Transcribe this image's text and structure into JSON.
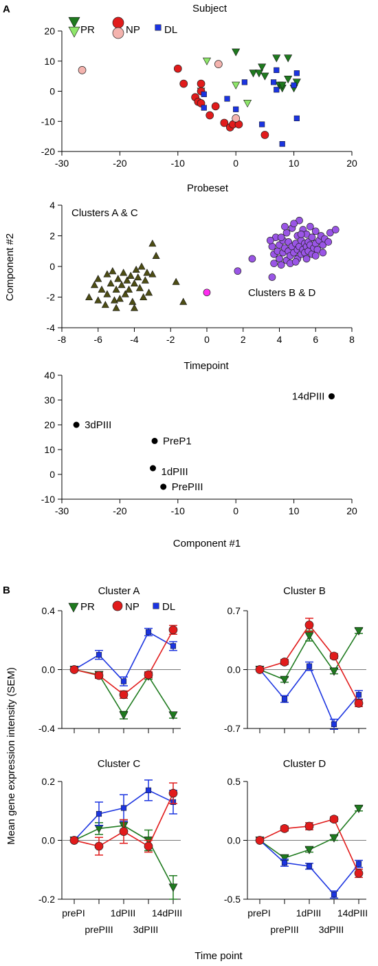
{
  "figure": {
    "panel_a_letter": "A",
    "panel_b_letter": "B"
  },
  "colors": {
    "pr_dark": "#1e7a1e",
    "pr_light": "#8ee66a",
    "np_dark": "#e11b1b",
    "np_light": "#f4b3ae",
    "dl": "#1b34e0",
    "dark_olive": "#4d4d14",
    "purple": "#9a55e6",
    "magenta": "#ff2bf0"
  },
  "chart_data": [
    {
      "type": "scatter",
      "title": "Subject",
      "xlabel": "Probeset",
      "xlim": [
        -30,
        20
      ],
      "ylim": [
        -20,
        20
      ],
      "xticks": [
        -30,
        -20,
        -10,
        0,
        10,
        20
      ],
      "yticks": [
        -20,
        -10,
        0,
        10,
        20
      ],
      "legend_position": "top-left",
      "legend_labels": [
        "PR",
        "NP",
        "DL"
      ],
      "series": [
        {
          "name": "PR",
          "key": "pr_dark",
          "marker": "triangle-down",
          "points": [
            [
              0,
              13
            ],
            [
              3,
              6
            ],
            [
              4,
              6
            ],
            [
              4.5,
              8
            ],
            [
              5,
              5
            ],
            [
              7,
              11
            ],
            [
              7.5,
              2
            ],
            [
              8,
              1
            ],
            [
              9,
              11
            ],
            [
              9,
              4
            ],
            [
              10,
              1
            ],
            [
              10.5,
              3
            ],
            [
              8,
              2
            ]
          ]
        },
        {
          "name": "PR",
          "key": "pr_light",
          "marker": "triangle-down",
          "points": [
            [
              -5,
              10
            ],
            [
              0,
              2
            ],
            [
              -6,
              0
            ],
            [
              2,
              -4
            ]
          ]
        },
        {
          "name": "NP",
          "key": "np_dark",
          "marker": "circle",
          "points": [
            [
              -10,
              7.5
            ],
            [
              -9,
              2.5
            ],
            [
              -6,
              2.5
            ],
            [
              -6,
              0
            ],
            [
              -7,
              -2
            ],
            [
              -6.5,
              -3.5
            ],
            [
              -6,
              -4
            ],
            [
              -3.5,
              -5
            ],
            [
              -4.5,
              -8
            ],
            [
              -2,
              -10.5
            ],
            [
              -1,
              -12
            ],
            [
              -0.5,
              -11
            ],
            [
              0.5,
              -11
            ],
            [
              5,
              -14.5
            ]
          ]
        },
        {
          "name": "NP",
          "key": "np_light",
          "marker": "circle",
          "points": [
            [
              -26.5,
              7
            ],
            [
              -3,
              9
            ],
            [
              0,
              -9
            ]
          ]
        },
        {
          "name": "DL",
          "key": "dl",
          "marker": "square",
          "points": [
            [
              -5.5,
              -1
            ],
            [
              -5.5,
              -5.5
            ],
            [
              -1.5,
              -2.5
            ],
            [
              0,
              -6
            ],
            [
              1.5,
              3
            ],
            [
              4.5,
              -11
            ],
            [
              6.5,
              3
            ],
            [
              7,
              7
            ],
            [
              7,
              0.5
            ],
            [
              8,
              -17.5
            ],
            [
              10,
              2
            ],
            [
              10.5,
              6
            ],
            [
              10.5,
              -9
            ]
          ]
        }
      ]
    },
    {
      "type": "scatter",
      "xlabel": "Timepoint",
      "ylabel": "Component #2",
      "xlim": [
        -8,
        8
      ],
      "ylim": [
        -4,
        4
      ],
      "xticks": [
        -8,
        -6,
        -4,
        -2,
        0,
        2,
        4,
        6,
        8
      ],
      "yticks": [
        -4,
        -2,
        0,
        2,
        4
      ],
      "annotations": [
        "Clusters A & C",
        "Clusters B & D"
      ],
      "series": [
        {
          "key": "dark_olive",
          "marker": "triangle-up",
          "points": [
            [
              -6.5,
              -2
            ],
            [
              -6.2,
              -1.2
            ],
            [
              -6,
              -0.8
            ],
            [
              -6,
              -2.2
            ],
            [
              -5.8,
              -1.5
            ],
            [
              -5.6,
              -2.5
            ],
            [
              -5.5,
              -0.5
            ],
            [
              -5.5,
              -1.8
            ],
            [
              -5.3,
              -1.1
            ],
            [
              -5.2,
              -0.3
            ],
            [
              -5.1,
              -2.2
            ],
            [
              -5,
              -1.5
            ],
            [
              -4.9,
              -0.8
            ],
            [
              -4.8,
              -2.1
            ],
            [
              -4.7,
              -1.2
            ],
            [
              -4.6,
              -0.4
            ],
            [
              -4.5,
              -1.8
            ],
            [
              -4.4,
              -0.9
            ],
            [
              -4.3,
              -1.5
            ],
            [
              -4.2,
              -0.6
            ],
            [
              -4.1,
              -2.3
            ],
            [
              -4,
              -1.1
            ],
            [
              -3.9,
              -0.2
            ],
            [
              -3.8,
              -0.7
            ],
            [
              -3.7,
              -1.4
            ],
            [
              -3.6,
              0
            ],
            [
              -3.5,
              -2
            ],
            [
              -3.4,
              -0.9
            ],
            [
              -3.3,
              -0.4
            ],
            [
              -3.2,
              -1.7
            ],
            [
              -3,
              1.5
            ],
            [
              -2.8,
              0.7
            ],
            [
              -3,
              -0.5
            ],
            [
              -1.7,
              -1
            ],
            [
              -1.3,
              -2.3
            ],
            [
              -4,
              -2.7
            ],
            [
              -5,
              -2.7
            ]
          ]
        },
        {
          "key": "purple",
          "marker": "circle",
          "points": [
            [
              1.7,
              -0.3
            ],
            [
              2.5,
              0.5
            ],
            [
              3.6,
              -0.7
            ],
            [
              3.6,
              1.3
            ],
            [
              3.7,
              0.8
            ],
            [
              3.7,
              0.2
            ],
            [
              3.8,
              1.9
            ],
            [
              3.9,
              1
            ],
            [
              4,
              0.5
            ],
            [
              4,
              1.4
            ],
            [
              4.1,
              0.1
            ],
            [
              4.2,
              1.7
            ],
            [
              4.2,
              0.9
            ],
            [
              4.3,
              1.2
            ],
            [
              4.4,
              0.4
            ],
            [
              4.4,
              2.2
            ],
            [
              4.5,
              1
            ],
            [
              4.5,
              1.6
            ],
            [
              4.6,
              0.7
            ],
            [
              4.7,
              1.3
            ],
            [
              4.7,
              2.5
            ],
            [
              4.8,
              0.9
            ],
            [
              4.9,
              1.5
            ],
            [
              5,
              1.1
            ],
            [
              5,
              0.5
            ],
            [
              5,
              2
            ],
            [
              5.1,
              3
            ],
            [
              5.1,
              1.3
            ],
            [
              5.2,
              0.8
            ],
            [
              5.2,
              1.7
            ],
            [
              5.3,
              2.4
            ],
            [
              5.3,
              1.1
            ],
            [
              5.4,
              1.5
            ],
            [
              5.4,
              0.9
            ],
            [
              5.5,
              1.3
            ],
            [
              5.5,
              2.1
            ],
            [
              5.6,
              1.6
            ],
            [
              5.6,
              1
            ],
            [
              5.7,
              1.4
            ],
            [
              5.8,
              0.8
            ],
            [
              5.8,
              1.9
            ],
            [
              5.9,
              1.2
            ],
            [
              6,
              1.5
            ],
            [
              6,
              2.3
            ],
            [
              6.1,
              1.1
            ],
            [
              6.2,
              1.7
            ],
            [
              6.3,
              2
            ],
            [
              6.4,
              1.4
            ],
            [
              6.5,
              1.8
            ],
            [
              6.8,
              2.2
            ],
            [
              7.1,
              2.4
            ],
            [
              6.7,
              1.6
            ],
            [
              5.5,
              0.5
            ],
            [
              4.6,
              0.2
            ],
            [
              4.9,
              0.3
            ],
            [
              5.7,
              2.6
            ],
            [
              6.4,
              0.9
            ],
            [
              4.1,
              1.9
            ],
            [
              4.3,
              2.6
            ],
            [
              4.8,
              2.8
            ],
            [
              5.2,
              2.1
            ],
            [
              6,
              0.7
            ],
            [
              3.5,
              1.7
            ]
          ]
        },
        {
          "key": "magenta",
          "marker": "circle",
          "points": [
            [
              0,
              -1.7
            ]
          ]
        }
      ]
    },
    {
      "type": "scatter",
      "xlabel": "Component #1",
      "xlim": [
        -30,
        20
      ],
      "ylim": [
        -10,
        40
      ],
      "xticks": [
        -30,
        -20,
        -10,
        0,
        10,
        20
      ],
      "yticks": [
        -10,
        0,
        10,
        20,
        30,
        40
      ],
      "points": [
        {
          "label": "14dPIII",
          "x": 16.5,
          "y": 31.5
        },
        {
          "label": "3dPIII",
          "x": -27.5,
          "y": 20
        },
        {
          "label": "PreP1",
          "x": -14,
          "y": 13.5
        },
        {
          "label": "1dPIII",
          "x": -14.3,
          "y": 2.5
        },
        {
          "label": "PrePIII",
          "x": -12.5,
          "y": -5
        }
      ]
    },
    {
      "type": "line",
      "title": "Cluster A",
      "ylim": [
        -0.4,
        0.4
      ],
      "yticks": [
        -0.4,
        0.0,
        0.4
      ],
      "ytick_labels": [
        "-0.4",
        "0.0",
        "0.4"
      ],
      "legend_labels": [
        "PR",
        "NP",
        "DL"
      ],
      "series": [
        {
          "name": "PR",
          "key": "pr_dark",
          "marker": "triangle-down",
          "values": [
            0,
            -0.035,
            -0.31,
            -0.045,
            -0.31
          ],
          "errors": [
            0.01,
            0.02,
            0.025,
            0.02,
            0.02
          ]
        },
        {
          "name": "NP",
          "key": "np_dark",
          "marker": "circle",
          "values": [
            0,
            -0.04,
            -0.17,
            -0.035,
            0.27
          ],
          "errors": [
            0.01,
            0.02,
            0.025,
            0.02,
            0.03
          ]
        },
        {
          "name": "DL",
          "key": "dl",
          "marker": "square",
          "values": [
            0,
            0.1,
            -0.08,
            0.255,
            0.16
          ],
          "errors": [
            0.01,
            0.03,
            0.03,
            0.025,
            0.03
          ]
        }
      ]
    },
    {
      "type": "line",
      "title": "Cluster B",
      "ylim": [
        -0.7,
        0.7
      ],
      "yticks": [
        -0.7,
        0.0,
        0.7
      ],
      "ytick_labels": [
        "-0.7",
        "0.0",
        "0.7"
      ],
      "series": [
        {
          "name": "PR",
          "key": "pr_dark",
          "marker": "triangle-down",
          "values": [
            0,
            -0.12,
            0.4,
            -0.02,
            0.46
          ],
          "errors": [
            0.01,
            0.03,
            0.06,
            0.03,
            0.03
          ]
        },
        {
          "name": "NP",
          "key": "np_dark",
          "marker": "circle",
          "values": [
            0,
            0.09,
            0.53,
            0.16,
            -0.4
          ],
          "errors": [
            0.01,
            0.03,
            0.08,
            0.03,
            0.04
          ]
        },
        {
          "name": "DL",
          "key": "dl",
          "marker": "square",
          "values": [
            0,
            -0.35,
            0.04,
            -0.65,
            -0.3
          ],
          "errors": [
            0.01,
            0.04,
            0.05,
            0.06,
            0.05
          ]
        }
      ]
    },
    {
      "type": "line",
      "title": "Cluster C",
      "ylim": [
        -0.2,
        0.2
      ],
      "yticks": [
        -0.2,
        0.0,
        0.2
      ],
      "ytick_labels": [
        "-0.2",
        "0.0",
        "0.2"
      ],
      "series": [
        {
          "name": "PR",
          "key": "pr_dark",
          "marker": "triangle-down",
          "values": [
            0,
            0.04,
            0.05,
            0.0,
            -0.16
          ],
          "errors": [
            0.005,
            0.02,
            0.02,
            0.035,
            0.04
          ]
        },
        {
          "name": "NP",
          "key": "np_dark",
          "marker": "circle",
          "values": [
            0,
            -0.02,
            0.03,
            -0.02,
            0.16
          ],
          "errors": [
            0.005,
            0.03,
            0.04,
            0.02,
            0.035
          ]
        },
        {
          "name": "DL",
          "key": "dl",
          "marker": "square",
          "values": [
            0,
            0.09,
            0.11,
            0.17,
            0.13
          ],
          "errors": [
            0.005,
            0.04,
            0.045,
            0.035,
            0.04
          ]
        }
      ]
    },
    {
      "type": "line",
      "title": "Cluster D",
      "ylim": [
        -0.5,
        0.5
      ],
      "yticks": [
        -0.5,
        0.0,
        0.5
      ],
      "ytick_labels": [
        "-0.5",
        "0.0",
        "0.5"
      ],
      "series": [
        {
          "name": "PR",
          "key": "pr_dark",
          "marker": "triangle-down",
          "values": [
            0,
            -0.15,
            -0.08,
            0.02,
            0.27
          ],
          "errors": [
            0.01,
            0.02,
            0.02,
            0.02,
            0.02
          ]
        },
        {
          "name": "NP",
          "key": "np_dark",
          "marker": "circle",
          "values": [
            0,
            0.1,
            0.12,
            0.18,
            -0.28
          ],
          "errors": [
            0.01,
            0.02,
            0.03,
            0.02,
            0.035
          ]
        },
        {
          "name": "DL",
          "key": "dl",
          "marker": "square",
          "values": [
            0,
            -0.19,
            -0.22,
            -0.46,
            -0.2
          ],
          "errors": [
            0.01,
            0.03,
            0.025,
            0.03,
            0.03
          ]
        }
      ]
    }
  ],
  "panel_b": {
    "ylabel": "Mean gene expression intensity (SEM)",
    "xlabel": "Time point",
    "tick_row1": [
      "prePI",
      "1dPIII",
      "14dPIII"
    ],
    "tick_row2": [
      "prePIII",
      "3dPIII"
    ]
  }
}
